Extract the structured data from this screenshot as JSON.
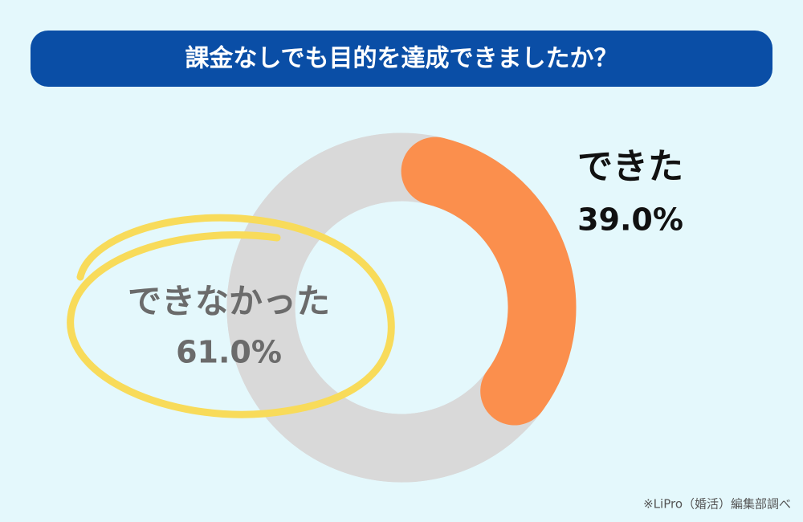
{
  "chart_data": {
    "type": "donut",
    "title": "課金なしでも目的を達成できましたか？",
    "categories": [
      "できた",
      "できなかった"
    ],
    "values": [
      39.0,
      61.0
    ],
    "value_labels": [
      "39.0%",
      "61.0%"
    ],
    "colors": [
      "#fb8f4d",
      "#d9d9d9"
    ],
    "source": "※LiPro（婚活）編集部調べ"
  }
}
